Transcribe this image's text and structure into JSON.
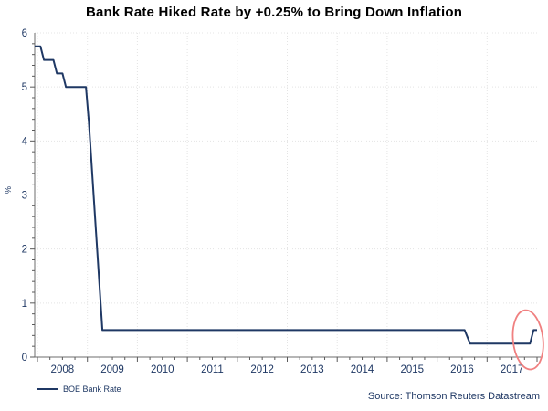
{
  "chart_data": {
    "type": "line",
    "title": "Bank Rate Hiked Rate by +0.25% to Bring Down Inflation",
    "ylabel": "%",
    "source": "Source: Thomson Reuters Datastream",
    "ylim": [
      0,
      6
    ],
    "xlim": [
      2007.945,
      2018.0
    ],
    "yticks": [
      0,
      1,
      2,
      3,
      4,
      5,
      6
    ],
    "xtick_year_labels": [
      "2008",
      "2009",
      "2010",
      "2011",
      "2012",
      "2013",
      "2014",
      "2015",
      "2016",
      "2017"
    ],
    "grid": true,
    "legend_position": "bottom-left",
    "colors": {
      "line": "#1f3864",
      "axis": "#6e6e6e",
      "tick": "#595959",
      "grid": "#e4e4e4",
      "label": "#1f3864",
      "annotation": "#f08080"
    },
    "series": [
      {
        "name": "BOE Bank Rate",
        "color": "#1f3864",
        "points": [
          [
            2007.945,
            5.75
          ],
          [
            2008.06,
            5.75
          ],
          [
            2008.13,
            5.5
          ],
          [
            2008.32,
            5.5
          ],
          [
            2008.39,
            5.25
          ],
          [
            2008.5,
            5.25
          ],
          [
            2008.57,
            5.0
          ],
          [
            2008.97,
            5.0
          ],
          [
            2009.03,
            4.35
          ],
          [
            2009.3,
            0.5
          ],
          [
            2016.55,
            0.5
          ],
          [
            2016.66,
            0.25
          ],
          [
            2017.86,
            0.25
          ],
          [
            2017.93,
            0.5
          ],
          [
            2018.0,
            0.5
          ]
        ]
      }
    ],
    "annotation": {
      "shape": "ellipse",
      "meaning": "highlight of final +0.25% rate hike",
      "center_year": 2017.82,
      "center_value": 0.32,
      "rx_years": 0.3,
      "ry_value": 0.55,
      "tilt_deg": -6,
      "color": "#f08080"
    }
  }
}
